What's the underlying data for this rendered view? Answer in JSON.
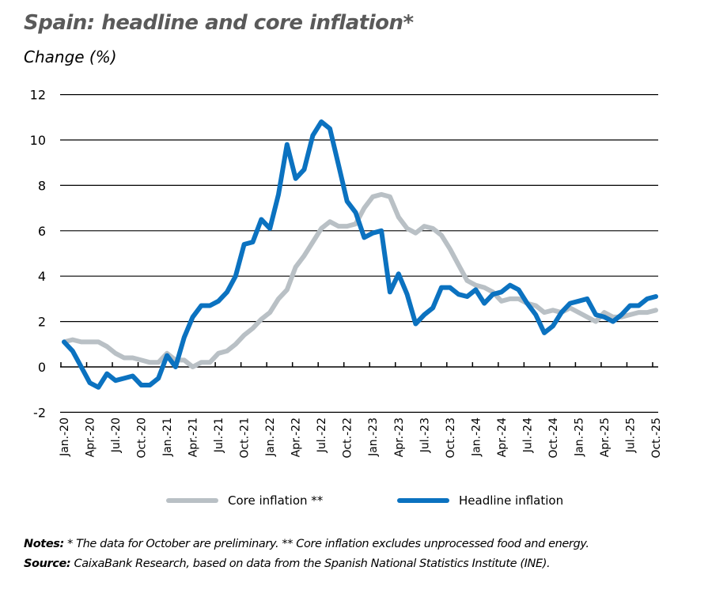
{
  "header": {
    "title": "Spain: headline and core inflation*",
    "subtitle": "Change (%)"
  },
  "legend": {
    "items": [
      {
        "label": "Core inflation **",
        "color": "#b9c0c5"
      },
      {
        "label": "Headline inflation",
        "color": "#0b72c0"
      }
    ]
  },
  "footer": {
    "notes_label": "Notes:",
    "notes_text": " * The data for October are preliminary. ** Core inflation excludes unprocessed food and energy.",
    "source_label": "Source:",
    "source_text": " CaixaBank Research, based on data from the Spanish National Statistics Institute (INE)."
  },
  "chart_data": {
    "type": "line",
    "title": "Spain: headline and core inflation*",
    "subtitle": "Change (%)",
    "xlabel": "",
    "ylabel": "Change (%)",
    "ylim": [
      -2,
      12
    ],
    "yticks": [
      -2,
      0,
      2,
      4,
      6,
      8,
      10,
      12
    ],
    "grid": "horizontal",
    "legend_position": "bottom",
    "x_tick_labels": [
      "Jan.-20",
      "Apr.-20",
      "Jul.-20",
      "Oct.-20",
      "Jan.-21",
      "Apr.-21",
      "Jul.-21",
      "Oct.-21",
      "Jan.-22",
      "Apr.-22",
      "Jul.-22",
      "Oct.-22",
      "Jan.-23",
      "Apr.-23",
      "Jul.-23",
      "Oct.-23",
      "Jan.-24",
      "Apr.-24",
      "Jul.-24",
      "Oct.-24",
      "Jan.-25",
      "Apr.-25",
      "Jul.-25",
      "Oct.-25"
    ],
    "x_start": "Jan-2020",
    "x_end": "Oct-2025",
    "frequency": "monthly",
    "series": [
      {
        "name": "Core inflation **",
        "color": "#b9c0c5",
        "values": [
          1.1,
          1.2,
          1.1,
          1.1,
          1.1,
          0.9,
          0.6,
          0.4,
          0.4,
          0.3,
          0.2,
          0.2,
          0.6,
          0.3,
          0.3,
          0.0,
          0.2,
          0.2,
          0.6,
          0.7,
          1.0,
          1.4,
          1.7,
          2.1,
          2.4,
          3.0,
          3.4,
          4.4,
          4.9,
          5.5,
          6.1,
          6.4,
          6.2,
          6.2,
          6.3,
          7.0,
          7.5,
          7.6,
          7.5,
          6.6,
          6.1,
          5.9,
          6.2,
          6.1,
          5.8,
          5.2,
          4.5,
          3.8,
          3.6,
          3.5,
          3.3,
          2.9,
          3.0,
          3.0,
          2.8,
          2.7,
          2.4,
          2.5,
          2.4,
          2.6,
          2.4,
          2.2,
          2.0,
          2.4,
          2.2,
          2.2,
          2.3,
          2.4,
          2.4,
          2.5
        ]
      },
      {
        "name": "Headline inflation",
        "color": "#0b72c0",
        "values": [
          1.1,
          0.7,
          0.0,
          -0.7,
          -0.9,
          -0.3,
          -0.6,
          -0.5,
          -0.4,
          -0.8,
          -0.8,
          -0.5,
          0.5,
          0.0,
          1.3,
          2.2,
          2.7,
          2.7,
          2.9,
          3.3,
          4.0,
          5.4,
          5.5,
          6.5,
          6.1,
          7.6,
          9.8,
          8.3,
          8.7,
          10.2,
          10.8,
          10.5,
          8.9,
          7.3,
          6.8,
          5.7,
          5.9,
          6.0,
          3.3,
          4.1,
          3.2,
          1.9,
          2.3,
          2.6,
          3.5,
          3.5,
          3.2,
          3.1,
          3.4,
          2.8,
          3.2,
          3.3,
          3.6,
          3.4,
          2.8,
          2.3,
          1.5,
          1.8,
          2.4,
          2.8,
          2.9,
          3.0,
          2.3,
          2.2,
          2.0,
          2.3,
          2.7,
          2.7,
          3.0,
          3.1
        ]
      }
    ]
  }
}
